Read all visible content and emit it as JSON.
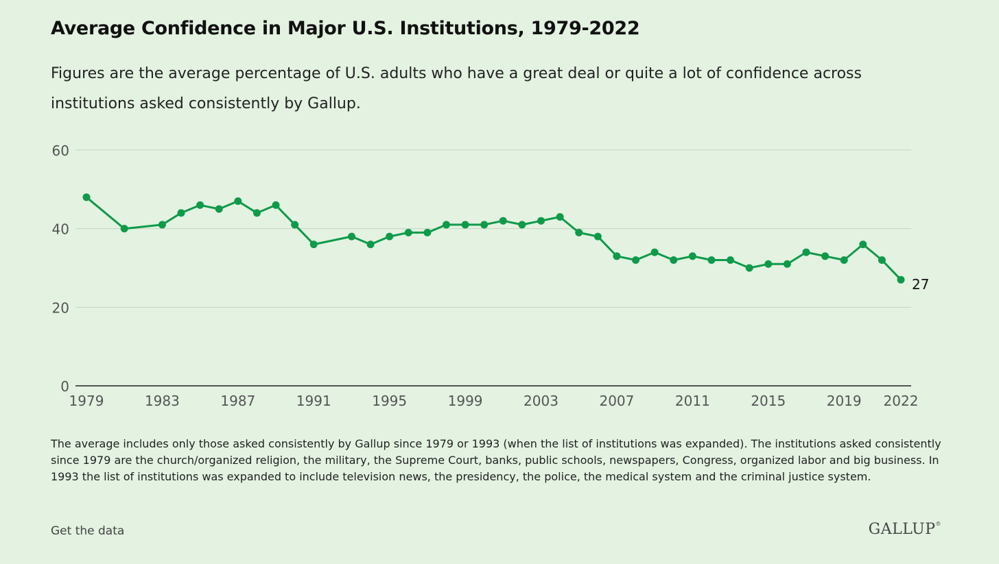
{
  "header": {
    "title": "Average Confidence in Major U.S. Institutions, 1979-2022",
    "subtitle": "Figures are the average percentage of U.S. adults who have a great deal or quite a lot of confidence across institutions asked consistently by Gallup."
  },
  "footer": {
    "note": "The average includes only those asked consistently by Gallup since 1979 or 1993 (when the list of institutions was expanded). The institutions asked consistently since 1979 are the church/organized religion, the military, the Supreme Court, banks, public schools, newspapers, Congress, organized labor and big business. In 1993 the list of institutions was expanded to include television news, the presidency, the police, the medical system and the criminal justice system.",
    "get_data_label": "Get the data",
    "logo_text": "GALLUP"
  },
  "colors": {
    "background": "#e3f2e1",
    "series": "#0f9a4a",
    "grid": "#c5d6c3",
    "axis": "#222222",
    "tick_text": "#555555"
  },
  "chart_data": {
    "type": "line",
    "title": "Average Confidence in Major U.S. Institutions, 1979-2022",
    "xlabel": "",
    "ylabel": "",
    "xlim": [
      1979,
      2022
    ],
    "ylim": [
      0,
      60
    ],
    "yticks": [
      0,
      20,
      40,
      60
    ],
    "xticks": [
      1979,
      1983,
      1987,
      1991,
      1995,
      1999,
      2003,
      2007,
      2011,
      2015,
      2019,
      2022
    ],
    "grid": true,
    "legend": "none",
    "series": [
      {
        "x": [
          1979,
          1981,
          1983,
          1984,
          1985,
          1986,
          1987,
          1988,
          1989,
          1990,
          1991,
          1993,
          1994,
          1995,
          1996,
          1997,
          1998,
          1999,
          2000,
          2001,
          2002,
          2003,
          2004,
          2005,
          2006,
          2007,
          2008,
          2009,
          2010,
          2011,
          2012,
          2013,
          2014,
          2015,
          2016,
          2017,
          2018,
          2019,
          2020,
          2021,
          2022
        ],
        "values": [
          48,
          40,
          41,
          44,
          46,
          45,
          47,
          44,
          46,
          41,
          36,
          38,
          36,
          38,
          39,
          39,
          41,
          41,
          41,
          42,
          41,
          42,
          43,
          39,
          38,
          33,
          32,
          34,
          32,
          33,
          32,
          32,
          30,
          31,
          31,
          34,
          33,
          32,
          36,
          32,
          27
        ]
      }
    ],
    "annotations": [
      {
        "text": "27",
        "x": 2022,
        "y": 27
      }
    ]
  }
}
